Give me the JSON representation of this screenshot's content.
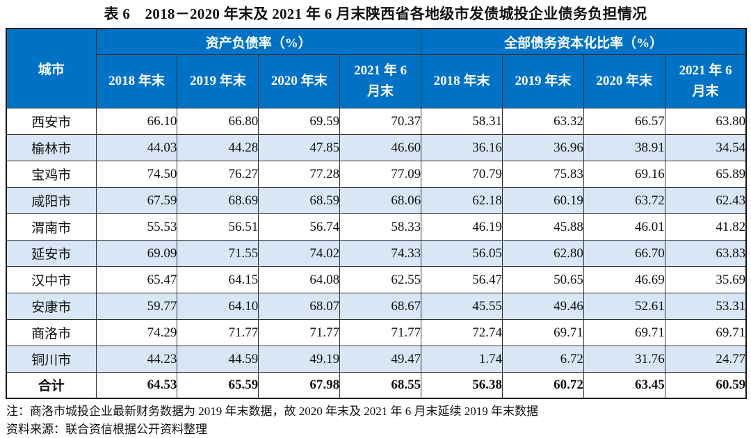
{
  "title": "表 6　2018－2020 年末及 2021 年 6 月末陕西省各地级市发债城投企业债务负担情况",
  "table": {
    "corner_header": "城市",
    "groups": [
      {
        "label": "资产负债率（%）",
        "columns": [
          "2018 年末",
          "2019 年末",
          "2020 年末",
          "2021 年 6\n月末"
        ]
      },
      {
        "label": "全部债务资本化比率（%）",
        "columns": [
          "2018 年末",
          "2019 年末",
          "2020 年末",
          "2021 年 6\n月末"
        ]
      }
    ],
    "rows": [
      {
        "city": "西安市",
        "values": [
          "66.10",
          "66.80",
          "69.59",
          "70.37",
          "58.31",
          "63.32",
          "66.57",
          "63.80"
        ]
      },
      {
        "city": "榆林市",
        "values": [
          "44.03",
          "44.28",
          "47.85",
          "46.60",
          "36.16",
          "36.96",
          "38.91",
          "34.54"
        ]
      },
      {
        "city": "宝鸡市",
        "values": [
          "74.50",
          "76.27",
          "77.28",
          "77.09",
          "70.79",
          "75.83",
          "69.16",
          "65.89"
        ]
      },
      {
        "city": "咸阳市",
        "values": [
          "67.59",
          "68.69",
          "68.59",
          "68.06",
          "62.18",
          "60.19",
          "63.72",
          "62.43"
        ]
      },
      {
        "city": "渭南市",
        "values": [
          "55.53",
          "56.51",
          "56.74",
          "58.33",
          "46.19",
          "45.88",
          "46.01",
          "41.82"
        ]
      },
      {
        "city": "延安市",
        "values": [
          "69.09",
          "71.55",
          "74.02",
          "74.33",
          "56.05",
          "62.80",
          "66.70",
          "63.83"
        ]
      },
      {
        "city": "汉中市",
        "values": [
          "65.47",
          "64.15",
          "64.08",
          "62.55",
          "56.47",
          "50.65",
          "46.69",
          "35.69"
        ]
      },
      {
        "city": "安康市",
        "values": [
          "59.77",
          "64.10",
          "68.07",
          "68.67",
          "45.55",
          "49.46",
          "52.61",
          "53.31"
        ]
      },
      {
        "city": "商洛市",
        "values": [
          "74.29",
          "71.77",
          "71.77",
          "71.77",
          "72.74",
          "69.71",
          "69.71",
          "69.71"
        ]
      },
      {
        "city": "铜川市",
        "values": [
          "44.23",
          "44.59",
          "49.19",
          "49.47",
          "1.74",
          "6.72",
          "31.76",
          "24.77"
        ]
      }
    ],
    "total_row": {
      "city": "合计",
      "values": [
        "64.53",
        "65.59",
        "67.98",
        "68.55",
        "56.38",
        "60.72",
        "63.45",
        "60.59"
      ]
    }
  },
  "notes": {
    "note": "注：商洛市城投企业最新财务数据为 2019 年末数据，故 2020 年末及 2021 年 6 月末延续 2019 年末数据",
    "source": "资料来源：联合资信根据公开资料整理"
  },
  "colors": {
    "header_bg": "#0072C6",
    "header_text": "#FFFFFF",
    "row_alt_bg": "#D9E6F5",
    "border": "#2E2E2E"
  }
}
